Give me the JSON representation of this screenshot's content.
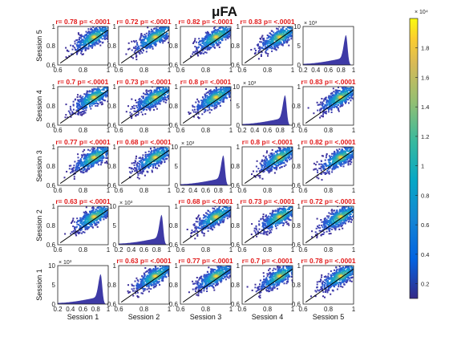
{
  "chart_data": {
    "type": "scatter-matrix",
    "title": "μFA",
    "sessions": [
      "Session 1",
      "Session 2",
      "Session 3",
      "Session 4",
      "Session 5"
    ],
    "row_order": [
      "Session 5",
      "Session 4",
      "Session 3",
      "Session 2",
      "Session 1"
    ],
    "col_order": [
      "Session 1",
      "Session 2",
      "Session 3",
      "Session 4",
      "Session 5"
    ],
    "scatter_xlim": [
      0.6,
      1
    ],
    "scatter_ylim": [
      0.6,
      1
    ],
    "scatter_ticks": [
      "0.6",
      "0.8",
      "1"
    ],
    "hist_xlim": [
      0.2,
      1
    ],
    "hist_xticks": [
      "0.2",
      "0.4",
      "0.6",
      "0.8",
      "1"
    ],
    "hist_ylim": [
      0,
      10
    ],
    "hist_yticks": [
      "0",
      "5",
      "10"
    ],
    "hist_yscale_label": "× 10³",
    "hist_peak_x": 0.88,
    "correlations": [
      [
        "r= 0.78 p= <.0001",
        "r= 0.72 p= <.0001",
        "r= 0.82 p= <.0001",
        "r= 0.83 p= <.0001",
        ""
      ],
      [
        "r= 0.7 p= <.0001",
        "r= 0.73 p= <.0001",
        "r= 0.8 p= <.0001",
        "",
        "r= 0.83 p= <.0001"
      ],
      [
        "r= 0.77 p= <.0001",
        "r= 0.68 p= <.0001",
        "",
        "r= 0.8 p= <.0001",
        "r= 0.82 p= <.0001"
      ],
      [
        "r= 0.63 p= <.0001",
        "",
        "r= 0.68 p= <.0001",
        "r= 0.73 p= <.0001",
        "r= 0.72 p= <.0001"
      ],
      [
        "",
        "r= 0.63 p= <.0001",
        "r= 0.77 p= <.0001",
        "r= 0.7 p= <.0001",
        "r= 0.78 p= <.0001"
      ]
    ],
    "colorbar": {
      "colormap": "parula",
      "range": [
        0.1,
        2.0
      ],
      "ticks": [
        "0.2",
        "0.4",
        "0.6",
        "0.8",
        "1",
        "1.2",
        "1.4",
        "1.6",
        "1.8"
      ],
      "scale_label": "× 10⁴"
    },
    "grid": false
  }
}
